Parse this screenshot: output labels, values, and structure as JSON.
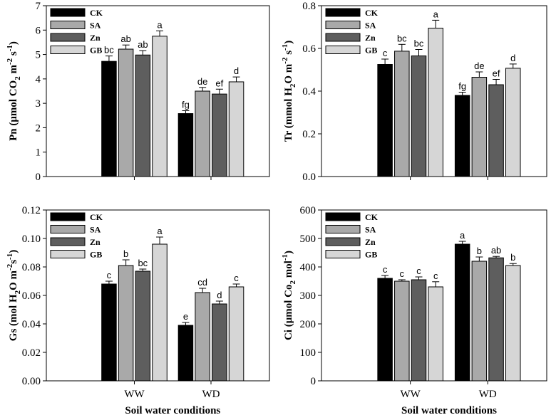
{
  "chart_data": [
    {
      "type": "bar",
      "id": "pn",
      "ylabel_main": "Pn (μmol CO",
      "ylabel_sub1": "2",
      "ylabel_mid": " m",
      "ylabel_sup1": "-2",
      "ylabel_mid2": " s",
      "ylabel_sup2": "-1",
      "ylabel_end": ")",
      "xlabel": "",
      "categories": [
        "WW",
        "WD"
      ],
      "ylim": [
        0,
        7
      ],
      "yticks": [
        "0",
        "1",
        "2",
        "3",
        "4",
        "5",
        "6",
        "7"
      ],
      "series": [
        {
          "name": "CK",
          "values": [
            4.72,
            2.58
          ],
          "errors": [
            0.22,
            0.12
          ],
          "letters": [
            "bc",
            "fg"
          ]
        },
        {
          "name": "SA",
          "values": [
            5.22,
            3.5
          ],
          "errors": [
            0.17,
            0.15
          ],
          "letters": [
            "ab",
            "de"
          ]
        },
        {
          "name": "Zn",
          "values": [
            4.98,
            3.38
          ],
          "errors": [
            0.18,
            0.2
          ],
          "letters": [
            "ab",
            "ef"
          ]
        },
        {
          "name": "GB",
          "values": [
            5.75,
            3.88
          ],
          "errors": [
            0.22,
            0.2
          ],
          "letters": [
            "a",
            "d"
          ]
        }
      ]
    },
    {
      "type": "bar",
      "id": "tr",
      "ylabel_main": "Tr (mmol H",
      "ylabel_sub1": "2",
      "ylabel_mid": "O m",
      "ylabel_sup1": "-2",
      "ylabel_mid2": " s",
      "ylabel_sup2": "-1",
      "ylabel_end": ")",
      "xlabel": "",
      "categories": [
        "WW",
        "WD"
      ],
      "ylim": [
        0,
        0.8
      ],
      "yticks": [
        "0.0",
        "0.2",
        "0.4",
        "0.6",
        "0.8"
      ],
      "series": [
        {
          "name": "CK",
          "values": [
            0.525,
            0.38
          ],
          "errors": [
            0.025,
            0.015
          ],
          "letters": [
            "c",
            "fg"
          ]
        },
        {
          "name": "SA",
          "values": [
            0.587,
            0.465
          ],
          "errors": [
            0.032,
            0.025
          ],
          "letters": [
            "bc",
            "de"
          ]
        },
        {
          "name": "Zn",
          "values": [
            0.565,
            0.43
          ],
          "errors": [
            0.03,
            0.025
          ],
          "letters": [
            "bc",
            "ef"
          ]
        },
        {
          "name": "GB",
          "values": [
            0.695,
            0.507
          ],
          "errors": [
            0.037,
            0.02
          ],
          "letters": [
            "a",
            "d"
          ]
        }
      ]
    },
    {
      "type": "bar",
      "id": "gs",
      "ylabel_main": "Gs (mol H",
      "ylabel_sub1": "2",
      "ylabel_mid": "O m",
      "ylabel_sup1": "-2",
      "ylabel_mid2": "s",
      "ylabel_sup2": "-1",
      "ylabel_end": ")",
      "xlabel": "Soil water conditions",
      "categories": [
        "WW",
        "WD"
      ],
      "ylim": [
        0,
        0.12
      ],
      "yticks": [
        "0.00",
        "0.02",
        "0.04",
        "0.06",
        "0.08",
        "0.10",
        "0.12"
      ],
      "series": [
        {
          "name": "CK",
          "values": [
            0.068,
            0.039
          ],
          "errors": [
            0.002,
            0.002
          ],
          "letters": [
            "c",
            "e"
          ]
        },
        {
          "name": "SA",
          "values": [
            0.081,
            0.062
          ],
          "errors": [
            0.004,
            0.003
          ],
          "letters": [
            "b",
            "cd"
          ]
        },
        {
          "name": "Zn",
          "values": [
            0.077,
            0.054
          ],
          "errors": [
            0.0015,
            0.002
          ],
          "letters": [
            "bc",
            "d"
          ]
        },
        {
          "name": "GB",
          "values": [
            0.096,
            0.066
          ],
          "errors": [
            0.005,
            0.002
          ],
          "letters": [
            "a",
            "c"
          ]
        }
      ]
    },
    {
      "type": "bar",
      "id": "ci",
      "ylabel_main": "Ci (μmol Co",
      "ylabel_sub1": "2",
      "ylabel_mid": " mol",
      "ylabel_sup1": "-1",
      "ylabel_mid2": "",
      "ylabel_sup2": "",
      "ylabel_end": ")",
      "xlabel": "Soil water conditions",
      "categories": [
        "WW",
        "WD"
      ],
      "ylim": [
        0,
        600
      ],
      "yticks": [
        "0",
        "100",
        "200",
        "300",
        "400",
        "500",
        "600"
      ],
      "series": [
        {
          "name": "CK",
          "values": [
            360,
            480
          ],
          "errors": [
            10,
            10
          ],
          "letters": [
            "c",
            "a"
          ]
        },
        {
          "name": "SA",
          "values": [
            350,
            420
          ],
          "errors": [
            5,
            15
          ],
          "letters": [
            "c",
            "b"
          ]
        },
        {
          "name": "Zn",
          "values": [
            355,
            432
          ],
          "errors": [
            10,
            5
          ],
          "letters": [
            "c",
            "ab"
          ]
        },
        {
          "name": "GB",
          "values": [
            330,
            405
          ],
          "errors": [
            18,
            7
          ],
          "letters": [
            "c",
            "b"
          ]
        }
      ]
    }
  ],
  "colors": {
    "CK": "#000000",
    "SA": "#a9a9a9",
    "Zn": "#5e5e5e",
    "GB": "#d6d6d6"
  }
}
